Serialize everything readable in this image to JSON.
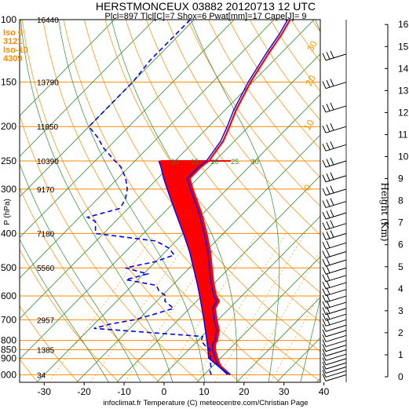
{
  "title": "HERSTMONCEUX 03882 20120713 12 UTC",
  "subtitle": "Plcl=897 Tlcl[C]=7 Shox=6 Pwat[mm]=17 Cape[J]= 9",
  "freezing": {
    "iso0_label": "Iso 0",
    "iso0_value": "3121",
    "iso10_label": "Iso-10",
    "iso10_value": "4309"
  },
  "credit": "infoclimat.fr Temperature (C) meteocentre.com/Christian Page",
  "colors": {
    "temperature": "#ff0000",
    "dewpoint": "#0000ff",
    "parcel": "#0000ff",
    "cape_fill": "#ff0000",
    "cin_fill": "#ffff00",
    "isobar": "#ff8800",
    "isotherm": "#2e8b2e",
    "dry_adiabat": "#ff8800",
    "moist_adiabat": "#2e8b2e",
    "mixing_ratio": "#ff8800"
  },
  "chart_data": {
    "type": "line",
    "subtype": "skew-T log-P sounding",
    "x_axis": {
      "label": "Temperature (C)",
      "ticks": [
        -30,
        -20,
        -10,
        0,
        10,
        20,
        30,
        40
      ],
      "range": [
        -34,
        47
      ]
    },
    "y_axis": {
      "label": "P (hPa)",
      "ticks": [
        100,
        150,
        200,
        250,
        300,
        400,
        500,
        600,
        700,
        800,
        850,
        900,
        1000
      ],
      "range": [
        100,
        1050
      ],
      "scale": "log"
    },
    "heights_m": [
      {
        "p": 100,
        "h": "16440"
      },
      {
        "p": 150,
        "h": "13790"
      },
      {
        "p": 200,
        "h": "11850"
      },
      {
        "p": 250,
        "h": "10390"
      },
      {
        "p": 300,
        "h": "9170"
      },
      {
        "p": 400,
        "h": "7180"
      },
      {
        "p": 500,
        "h": "5560"
      },
      {
        "p": 700,
        "h": "2957"
      },
      {
        "p": 850,
        "h": "1385"
      },
      {
        "p": 1000,
        "h": "34"
      }
    ],
    "right_axis": {
      "label": "Height (Km)",
      "ticks": [
        0,
        1,
        2,
        3,
        4,
        5,
        6,
        7,
        8,
        9,
        10,
        11,
        12,
        13,
        14,
        15,
        16
      ]
    },
    "isotherm_labels": [
      {
        "t": 10,
        "p": 250,
        "text": "10"
      },
      {
        "t": 15,
        "p": 250,
        "text": "15"
      },
      {
        "t": 20,
        "p": 250,
        "text": "20"
      },
      {
        "t": 25,
        "p": 250,
        "text": "25"
      },
      {
        "t": 30,
        "p": 250,
        "text": "30"
      },
      {
        "t": 50,
        "p": 120,
        "text": "50"
      },
      {
        "t": 60,
        "p": 120,
        "text": "60"
      },
      {
        "t": 70,
        "p": 120,
        "text": "70"
      },
      {
        "t": 80,
        "p": 120,
        "text": "80"
      },
      {
        "t": 90,
        "p": 120,
        "text": "90"
      },
      {
        "t": 100,
        "p": 120,
        "text": "100"
      },
      {
        "t": 110,
        "p": 120,
        "text": "110"
      },
      {
        "t": 120,
        "p": 120,
        "text": "120"
      },
      {
        "t": 130,
        "p": 120,
        "text": "130"
      },
      {
        "t": 140,
        "p": 120,
        "text": "140"
      },
      {
        "t": 150,
        "p": 120,
        "text": "150"
      },
      {
        "t": 160,
        "p": 120,
        "text": "160"
      }
    ],
    "theta_labels": [
      "0",
      "10",
      "20",
      "30"
    ],
    "series": [
      {
        "name": "temperature",
        "points": [
          [
            1000,
            16.5
          ],
          [
            975,
            14.5
          ],
          [
            950,
            12.4
          ],
          [
            925,
            10.8
          ],
          [
            900,
            9.4
          ],
          [
            850,
            6.6
          ],
          [
            820,
            5.2
          ],
          [
            800,
            4.8
          ],
          [
            750,
            2.8
          ],
          [
            700,
            -0.4
          ],
          [
            650,
            -3.6
          ],
          [
            620,
            -4.4
          ],
          [
            600,
            -6.4
          ],
          [
            550,
            -10.4
          ],
          [
            500,
            -14.4
          ],
          [
            450,
            -18.8
          ],
          [
            400,
            -24.2
          ],
          [
            350,
            -30.6
          ],
          [
            300,
            -38.6
          ],
          [
            280,
            -42.0
          ],
          [
            260,
            -42.0
          ],
          [
            250,
            -41.5
          ],
          [
            220,
            -42.8
          ],
          [
            200,
            -44.8
          ],
          [
            180,
            -47.2
          ],
          [
            150,
            -50.5
          ],
          [
            125,
            -53.0
          ],
          [
            110,
            -54.5
          ],
          [
            100,
            -56.0
          ]
        ]
      },
      {
        "name": "dewpoint",
        "points": [
          [
            1000,
            11.8
          ],
          [
            975,
            10.5
          ],
          [
            950,
            9.8
          ],
          [
            925,
            8.6
          ],
          [
            900,
            7.6
          ],
          [
            850,
            5.4
          ],
          [
            825,
            2.8
          ],
          [
            800,
            0.8
          ],
          [
            780,
            0.2
          ],
          [
            740,
            -29.0
          ],
          [
            720,
            -26.0
          ],
          [
            700,
            -21.0
          ],
          [
            680,
            -18.0
          ],
          [
            650,
            -14.0
          ],
          [
            620,
            -18.0
          ],
          [
            600,
            -19.0
          ],
          [
            580,
            -22.0
          ],
          [
            560,
            -24.0
          ],
          [
            540,
            -33.0
          ],
          [
            520,
            -29.0
          ],
          [
            500,
            -36.0
          ],
          [
            480,
            -30.0
          ],
          [
            460,
            -27.0
          ],
          [
            440,
            -30.0
          ],
          [
            420,
            -35.0
          ],
          [
            400,
            -52.0
          ],
          [
            370,
            -55.0
          ],
          [
            360,
            -58.0
          ],
          [
            340,
            -52.0
          ],
          [
            320,
            -53.0
          ],
          [
            300,
            -55.0
          ],
          [
            280,
            -58.0
          ],
          [
            260,
            -62.0
          ],
          [
            250,
            -65.0
          ],
          [
            230,
            -71.0
          ],
          [
            215,
            -75.0
          ],
          [
            200,
            -80.0
          ],
          [
            180,
            -80.0
          ],
          [
            160,
            -80.0
          ],
          [
            150,
            -80.0
          ],
          [
            130,
            -81.0
          ],
          [
            115,
            -81.0
          ],
          [
            100,
            -81.0
          ]
        ]
      },
      {
        "name": "parcel",
        "points": [
          [
            1000,
            16.5
          ],
          [
            950,
            11.8
          ],
          [
            897,
            7.0
          ],
          [
            850,
            4.8
          ],
          [
            800,
            2.2
          ],
          [
            750,
            -0.6
          ],
          [
            700,
            -3.6
          ],
          [
            650,
            -6.9
          ],
          [
            600,
            -10.5
          ],
          [
            550,
            -14.5
          ],
          [
            500,
            -19.0
          ],
          [
            450,
            -24.0
          ],
          [
            400,
            -30.0
          ],
          [
            350,
            -37.0
          ],
          [
            300,
            -45.0
          ],
          [
            280,
            -48.5
          ],
          [
            260,
            -52.0
          ],
          [
            250,
            -54.0
          ]
        ]
      }
    ],
    "wind_barbs": {
      "pressure_range": [
        1000,
        100
      ],
      "direction": "westerly"
    }
  }
}
